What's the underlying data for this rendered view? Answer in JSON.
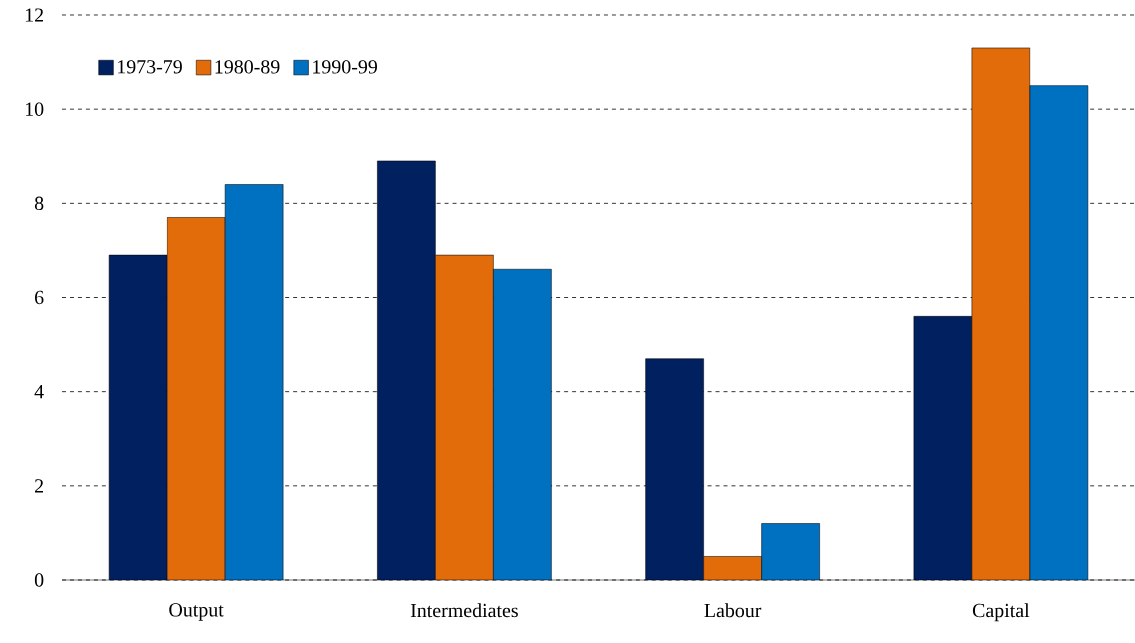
{
  "chart_data": {
    "type": "bar",
    "categories": [
      "Output",
      "Intermediates",
      "Labour",
      "Capital"
    ],
    "series": [
      {
        "name": "1973-79",
        "color": "#002060",
        "values": [
          6.9,
          8.9,
          4.7,
          5.6
        ]
      },
      {
        "name": "1980-89",
        "color": "#e36c0a",
        "values": [
          7.7,
          6.9,
          0.5,
          11.3
        ]
      },
      {
        "name": "1990-99",
        "color": "#0070c0",
        "values": [
          8.4,
          6.6,
          1.2,
          10.5
        ]
      }
    ],
    "ylim": [
      0,
      12
    ],
    "yticks": [
      0,
      2,
      4,
      6,
      8,
      10,
      12
    ],
    "grid": "y",
    "legend": "top left"
  }
}
